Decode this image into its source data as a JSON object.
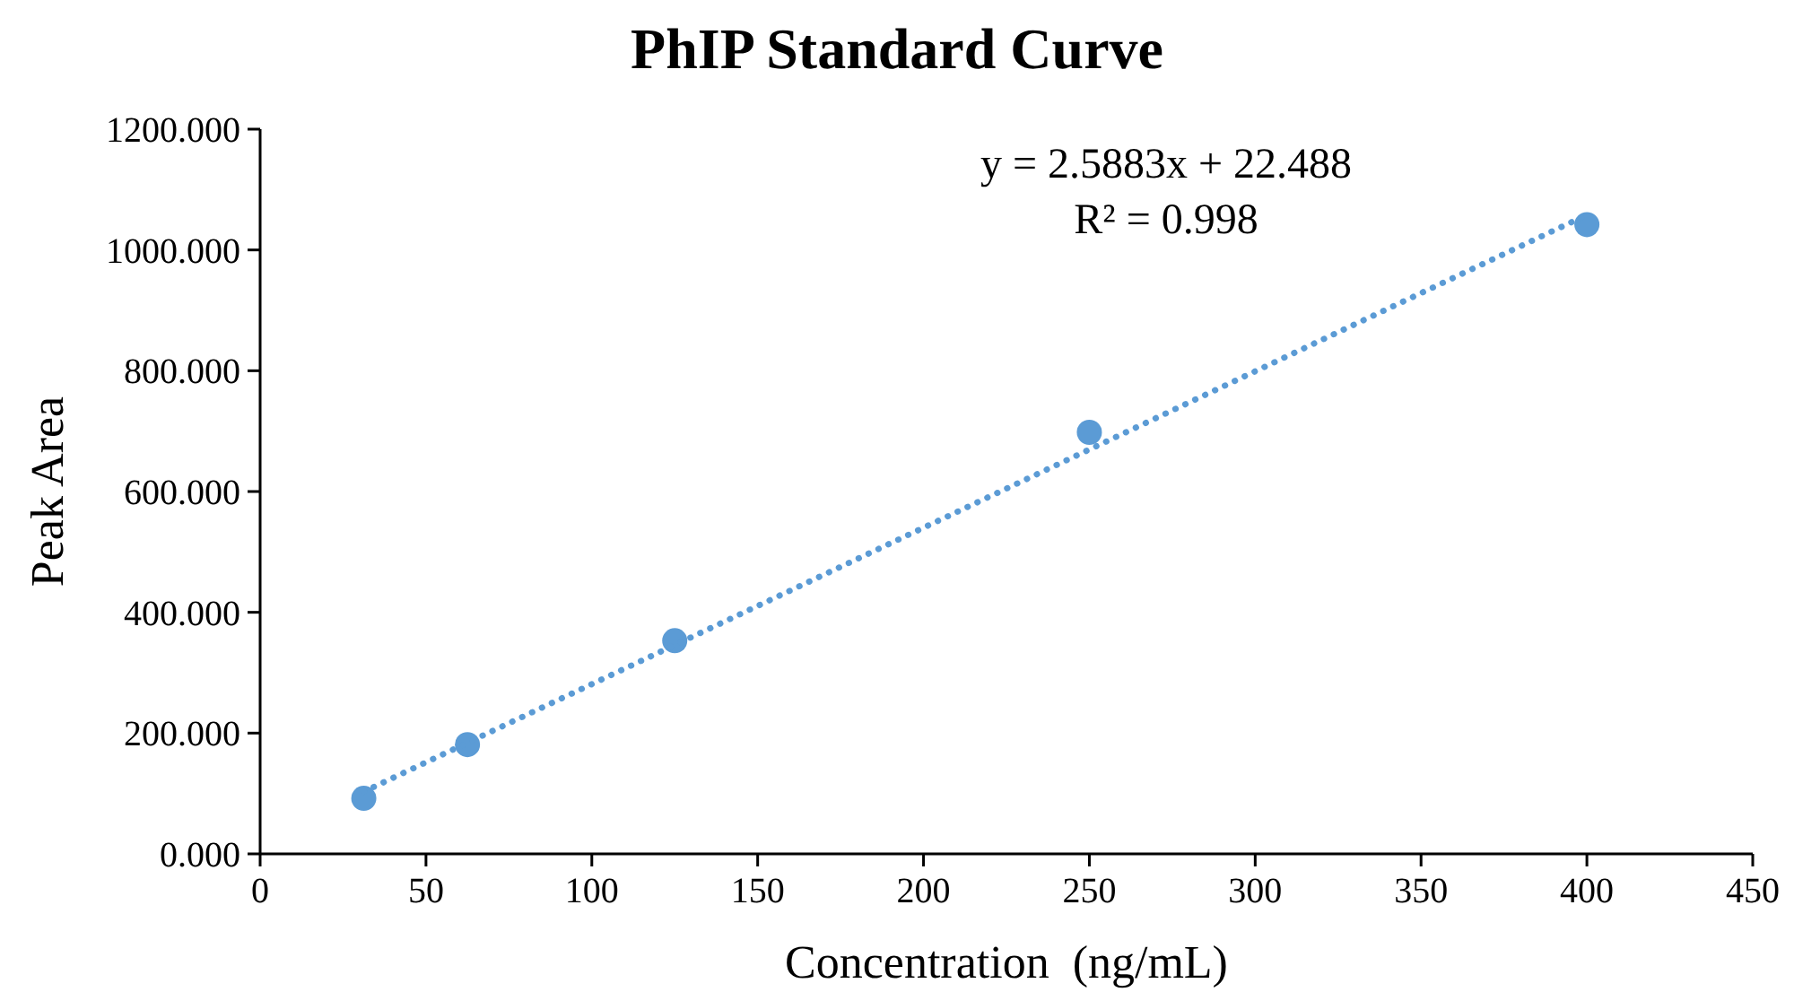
{
  "chart_data": {
    "type": "scatter",
    "title": "PhIP Standard Curve",
    "xlabel": "Concentration  (ng/mL)",
    "ylabel": "Peak Area",
    "x": [
      31.25,
      62.5,
      125,
      250,
      400
    ],
    "series": [
      {
        "color": "#5b9bd5",
        "values": [
          92,
          181,
          353,
          698,
          1042
        ],
        "marker": "circle"
      },
      {
        "type": "line",
        "color": "#5b9bd5",
        "x": [
          31.25,
          400
        ],
        "values": [
          103,
          1058
        ],
        "line_style": "dotted",
        "marker": "none"
      }
    ],
    "annotations": [
      "y = 2.5883x + 22.488",
      "R² = 0.998"
    ],
    "xlim": [
      0,
      450
    ],
    "xticks": [
      0,
      50,
      100,
      150,
      200,
      250,
      300,
      350,
      400,
      450
    ],
    "ylim": [
      0,
      1200
    ],
    "yticks": [
      {
        "value": 0,
        "label": "0.000"
      },
      {
        "value": 200,
        "label": "200.000"
      },
      {
        "value": 400,
        "label": "400.000"
      },
      {
        "value": 600,
        "label": "600.000"
      },
      {
        "value": 800,
        "label": "800.000"
      },
      {
        "value": 1000,
        "label": "1000.000"
      },
      {
        "value": 1200,
        "label": "1200.000"
      }
    ],
    "grid": false
  }
}
